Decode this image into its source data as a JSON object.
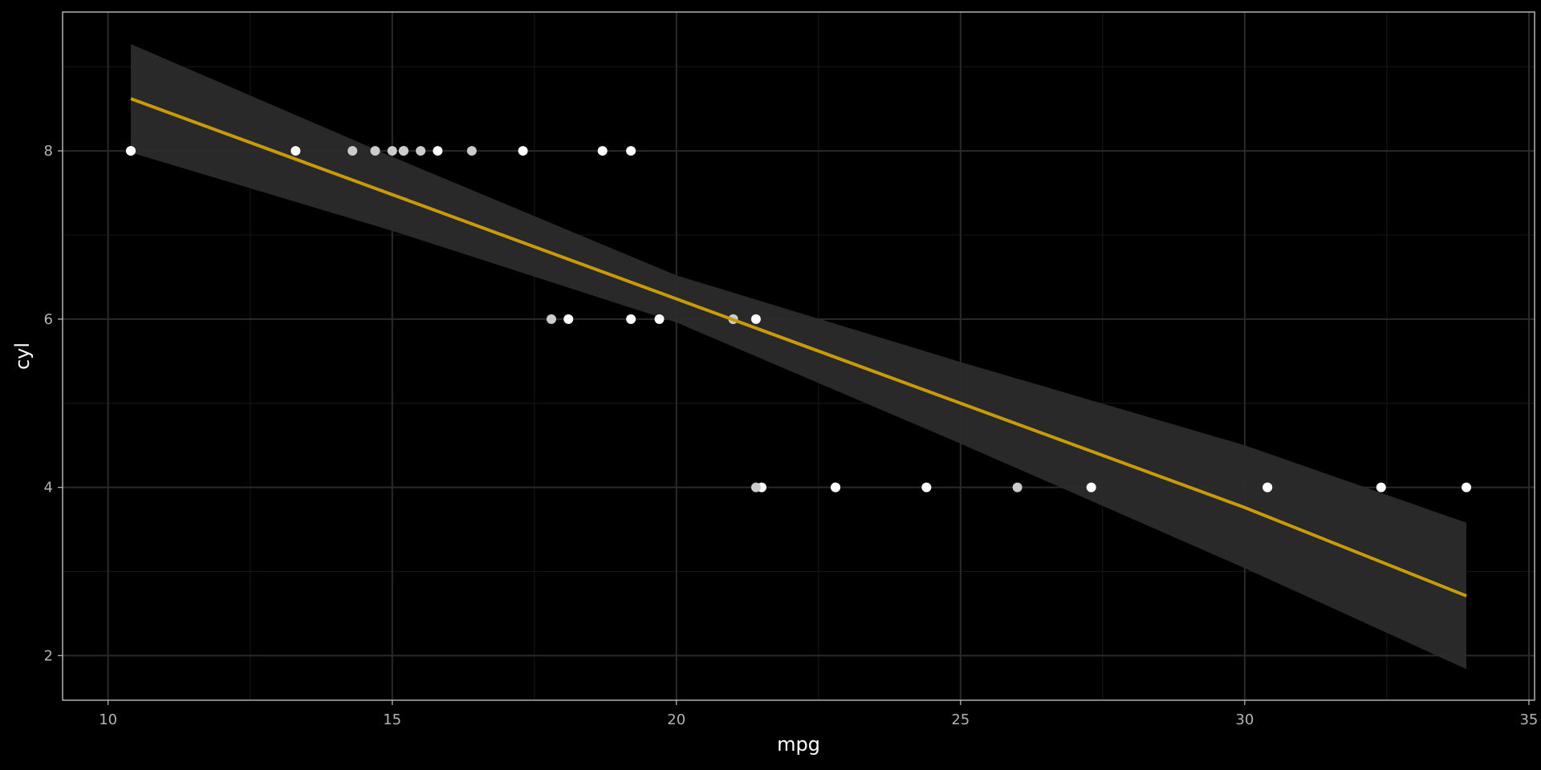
{
  "chart_data": {
    "type": "scatter",
    "xlabel": "mpg",
    "ylabel": "cyl",
    "xlim": [
      9.2,
      35.1
    ],
    "ylim": [
      1.47,
      9.65
    ],
    "x_ticks": [
      10,
      15,
      20,
      25,
      30,
      35
    ],
    "y_ticks": [
      2,
      4,
      6,
      8
    ],
    "x_tick_labels": [
      "10",
      "15",
      "20",
      "25",
      "30",
      "35"
    ],
    "y_tick_labels": [
      "2",
      "4",
      "6",
      "8"
    ],
    "grid": true,
    "legend": "none",
    "points": [
      {
        "x": 21.0,
        "y": 6
      },
      {
        "x": 21.0,
        "y": 6
      },
      {
        "x": 22.8,
        "y": 4
      },
      {
        "x": 21.4,
        "y": 6
      },
      {
        "x": 18.7,
        "y": 8
      },
      {
        "x": 18.1,
        "y": 6
      },
      {
        "x": 14.3,
        "y": 8
      },
      {
        "x": 24.4,
        "y": 4
      },
      {
        "x": 22.8,
        "y": 4
      },
      {
        "x": 19.2,
        "y": 6
      },
      {
        "x": 17.8,
        "y": 6
      },
      {
        "x": 16.4,
        "y": 8
      },
      {
        "x": 17.3,
        "y": 8
      },
      {
        "x": 15.2,
        "y": 8
      },
      {
        "x": 10.4,
        "y": 8
      },
      {
        "x": 10.4,
        "y": 8
      },
      {
        "x": 14.7,
        "y": 8
      },
      {
        "x": 32.4,
        "y": 4
      },
      {
        "x": 30.4,
        "y": 4
      },
      {
        "x": 33.9,
        "y": 4
      },
      {
        "x": 21.5,
        "y": 4
      },
      {
        "x": 15.5,
        "y": 8
      },
      {
        "x": 15.2,
        "y": 8
      },
      {
        "x": 13.3,
        "y": 8
      },
      {
        "x": 19.2,
        "y": 8
      },
      {
        "x": 27.3,
        "y": 4
      },
      {
        "x": 26.0,
        "y": 4
      },
      {
        "x": 30.4,
        "y": 4
      },
      {
        "x": 15.8,
        "y": 8
      },
      {
        "x": 19.7,
        "y": 6
      },
      {
        "x": 15.0,
        "y": 8
      },
      {
        "x": 21.4,
        "y": 4
      }
    ],
    "fit": {
      "method": "lm",
      "x": [
        10.4,
        15.0,
        20.0,
        25.0,
        30.0,
        33.9
      ],
      "y": [
        8.62,
        7.48,
        6.24,
        5.0,
        3.76,
        2.71
      ],
      "ci_lower": [
        7.98,
        7.05,
        5.96,
        4.52,
        3.04,
        1.84
      ],
      "ci_upper": [
        9.27,
        7.93,
        6.52,
        5.49,
        4.5,
        3.58
      ]
    },
    "colors": {
      "background": "#000000",
      "panel_border": "#cccccc",
      "grid_major": "#2a2a2a",
      "grid_minor": "#141414",
      "point": "#ffffff",
      "point_alt": "#cccccc",
      "fit_line": "#c99a0a",
      "ribbon": "#2b2b2b",
      "tick_text": "#b3b3b3",
      "axis_title": "#ffffff"
    }
  }
}
